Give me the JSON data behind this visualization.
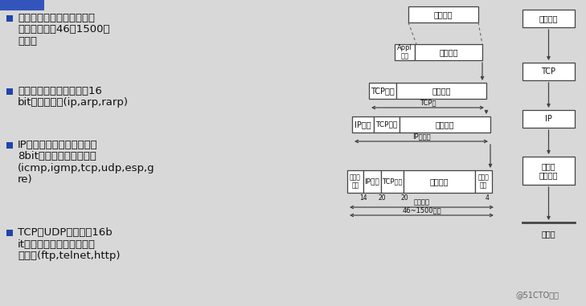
{
  "bg_color": "#d8d8d8",
  "text_color": "#111111",
  "bullet_color": "#2244aa",
  "diagram_line_color": "#444444",
  "white": "#ffffff",
  "watermark": "@51CTO博客",
  "bullet_texts": [
    [
      "以太网数据帧的物理特性是",
      "其长度必须在46～1500字",
      "节之间"
    ],
    [
      "以太网的帧首部也有一个16",
      "bit的帧类型域(ip,arp,rarp)"
    ],
    [
      "IP在首部中存入一个长度为",
      "8bit的数值，称作协议域",
      "(icmp,igmp,tcp,udp,esp,g",
      "re)"
    ],
    [
      "TCP和UDP都用一个16b",
      "it的端口号来表示不同的应",
      "用程序(ftp,telnet,http)"
    ]
  ],
  "layer1": {
    "label": "用户数据"
  },
  "layer2": {
    "label1": "Appl\n首部",
    "label2": "用户数据"
  },
  "layer3": {
    "label1": "TCP首部",
    "label2": "应用数据",
    "span_label": "TCP段"
  },
  "layer4": {
    "label1": "IP首部",
    "label2": "TCP首部",
    "label3": "应用数据",
    "span_label": "IP数据报"
  },
  "layer5": {
    "label1": "以太网\n首部",
    "label2": "IP首部",
    "label3": "TCP首部",
    "label4": "应用数据",
    "label5": "以太网\n尾部",
    "num1": "14",
    "num2": "20",
    "num3": "20",
    "num4": "4",
    "span1": "以太网帧",
    "span2": "46~1500字节"
  },
  "right_stack": [
    "应用程序",
    "TCP",
    "IP",
    "以太网\n驱动程序",
    "以太网"
  ]
}
